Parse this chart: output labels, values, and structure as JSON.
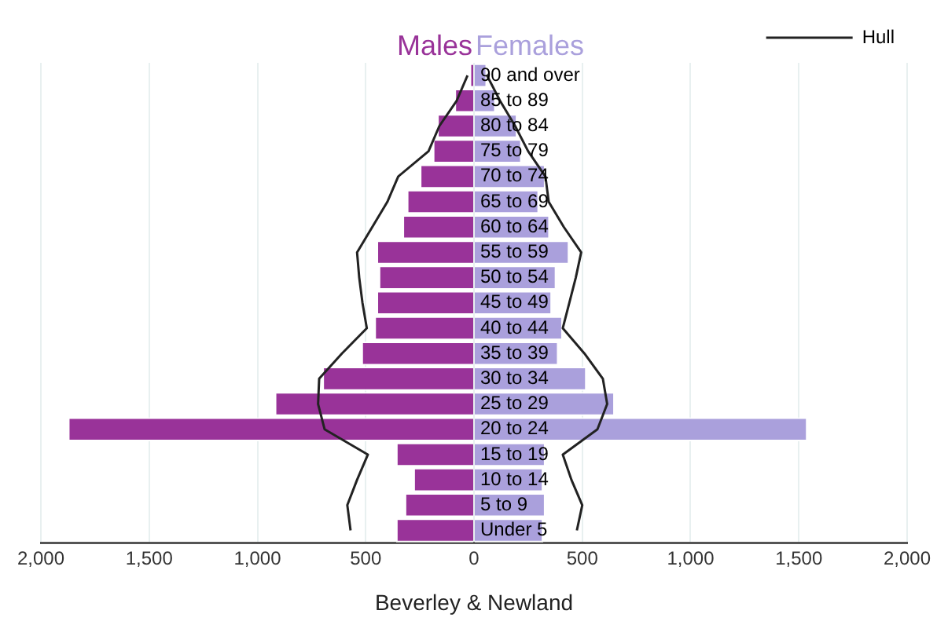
{
  "chart_data": {
    "type": "bar",
    "orientation": "horizontal",
    "xlabel": "Beverley & Newland",
    "categories": [
      "90 and over",
      "85 to 89",
      "80 to 84",
      "75 to 79",
      "70 to 74",
      "65 to 69",
      "60 to 64",
      "55 to 59",
      "50 to 54",
      "45 to 49",
      "40 to 44",
      "35 to 39",
      "30 to 34",
      "25 to 29",
      "20 to 24",
      "15 to 19",
      "10 to 14",
      "5 to 9",
      "Under 5"
    ],
    "series": [
      {
        "name": "Males",
        "color": "#993399",
        "values": [
          -20,
          -90,
          -170,
          -190,
          -250,
          -310,
          -330,
          -450,
          -440,
          -450,
          -460,
          -520,
          -700,
          -920,
          -1875,
          -360,
          -280,
          -320,
          -360
        ]
      },
      {
        "name": "Females",
        "color": "#aaa0dc",
        "values": [
          60,
          100,
          200,
          220,
          330,
          300,
          350,
          440,
          380,
          360,
          410,
          390,
          520,
          650,
          1540,
          330,
          320,
          330,
          320
        ]
      },
      {
        "name": "Hull",
        "type": "line",
        "color": "#222222",
        "values": [
          -30,
          -80,
          -160,
          -210,
          -350,
          -400,
          -470,
          -540,
          -530,
          -515,
          -495,
          -610,
          -715,
          -720,
          -690,
          -490,
          -540,
          -585,
          -570
        ]
      },
      {
        "type": "line",
        "color": "#222222",
        "values": [
          60,
          120,
          190,
          250,
          330,
          345,
          415,
          495,
          470,
          440,
          410,
          510,
          595,
          615,
          570,
          410,
          450,
          500,
          475
        ]
      }
    ],
    "xlim": [
      -2000,
      2000
    ],
    "xticks": [
      {
        "value": -2000,
        "label": "2,000"
      },
      {
        "value": -1500,
        "label": "1,500"
      },
      {
        "value": -1000,
        "label": "1,000"
      },
      {
        "value": -500,
        "label": "500"
      },
      0,
      500,
      {
        "value": 1000,
        "label": "1,000"
      },
      {
        "value": 1500,
        "label": "1,500"
      },
      {
        "value": 2000,
        "label": "2,000"
      }
    ],
    "stacked": true,
    "grid": "x",
    "legend": "top right",
    "marker": "none"
  }
}
